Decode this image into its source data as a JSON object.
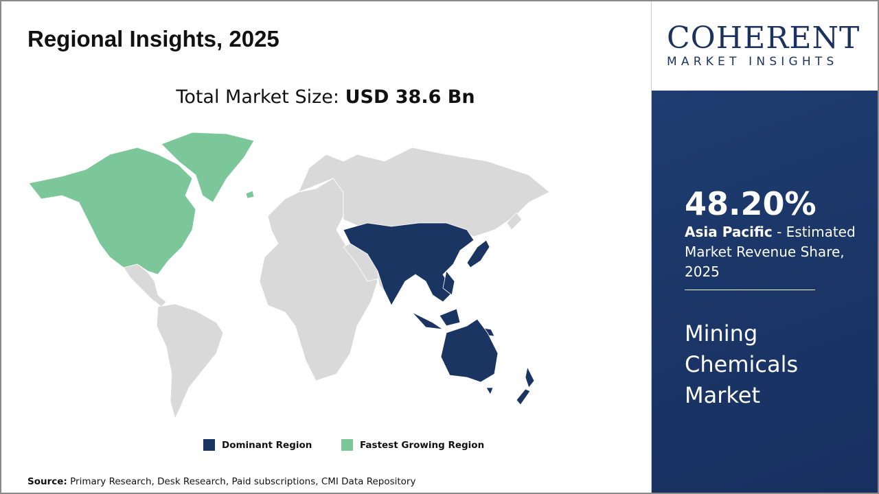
{
  "header": {
    "title": "Regional Insights, 2025"
  },
  "market_size": {
    "label": "Total Market Size:",
    "value": "USD 38.6 Bn"
  },
  "legend": [
    {
      "label": "Dominant Region",
      "color": "#1b3563"
    },
    {
      "label": "Fastest Growing Region",
      "color": "#7cc79a"
    }
  ],
  "map": {
    "dominant_region": "Asia Pacific",
    "fastest_growing_region": "North America",
    "other_color": "#d9d9d9"
  },
  "source": {
    "label": "Source:",
    "text": "Primary Research, Desk Research, Paid subscriptions, CMI Data Repository"
  },
  "logo": {
    "main": "COHERENT",
    "sub": "MARKET INSIGHTS"
  },
  "panel": {
    "share": "48.20%",
    "region": "Asia Pacific",
    "share_desc": " - Estimated Market Revenue Share, 2025",
    "market_name": "Mining Chemicals Market"
  }
}
